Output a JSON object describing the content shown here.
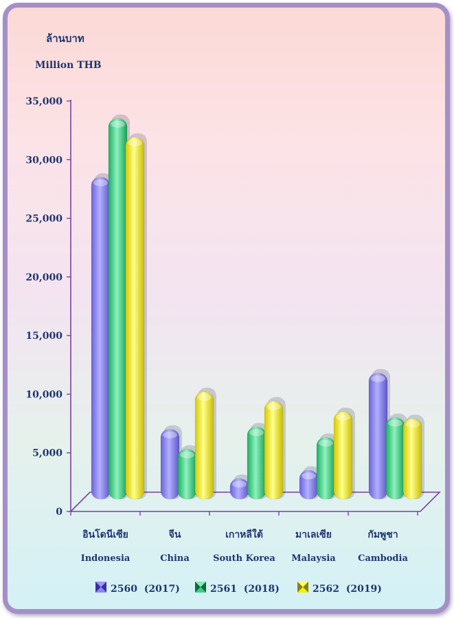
{
  "chart_data": {
    "type": "bar",
    "title": "",
    "unit_label_th": "ล้านบาท",
    "unit_label_en": "Million THB",
    "categories": [
      {
        "th": "อินโดนีเซีย",
        "en": "Indonesia"
      },
      {
        "th": "จีน",
        "en": "China"
      },
      {
        "th": "เกาหลีใต้",
        "en": "South Korea"
      },
      {
        "th": "มาเลเซีย",
        "en": "Malaysia"
      },
      {
        "th": "กัมพูชา",
        "en": "Cambodia"
      }
    ],
    "series": [
      {
        "name": "2560  (2017)",
        "color": "#8d88f2",
        "values": [
          28500,
          7000,
          2800,
          3500,
          11800
        ]
      },
      {
        "name": "2561  (2018)",
        "color": "#38d187",
        "values": [
          33500,
          5300,
          7200,
          6300,
          8000
        ]
      },
      {
        "name": "2562  (2019)",
        "color": "#f5f000",
        "values": [
          31900,
          10200,
          9400,
          8500,
          7900
        ]
      }
    ],
    "ylim": [
      0,
      35000
    ],
    "yticks": [
      "0",
      "5,000",
      "10,000",
      "15,000",
      "20,000",
      "25,000",
      "30,000",
      "35,000"
    ],
    "legend_position": "bottom",
    "grid": false
  }
}
